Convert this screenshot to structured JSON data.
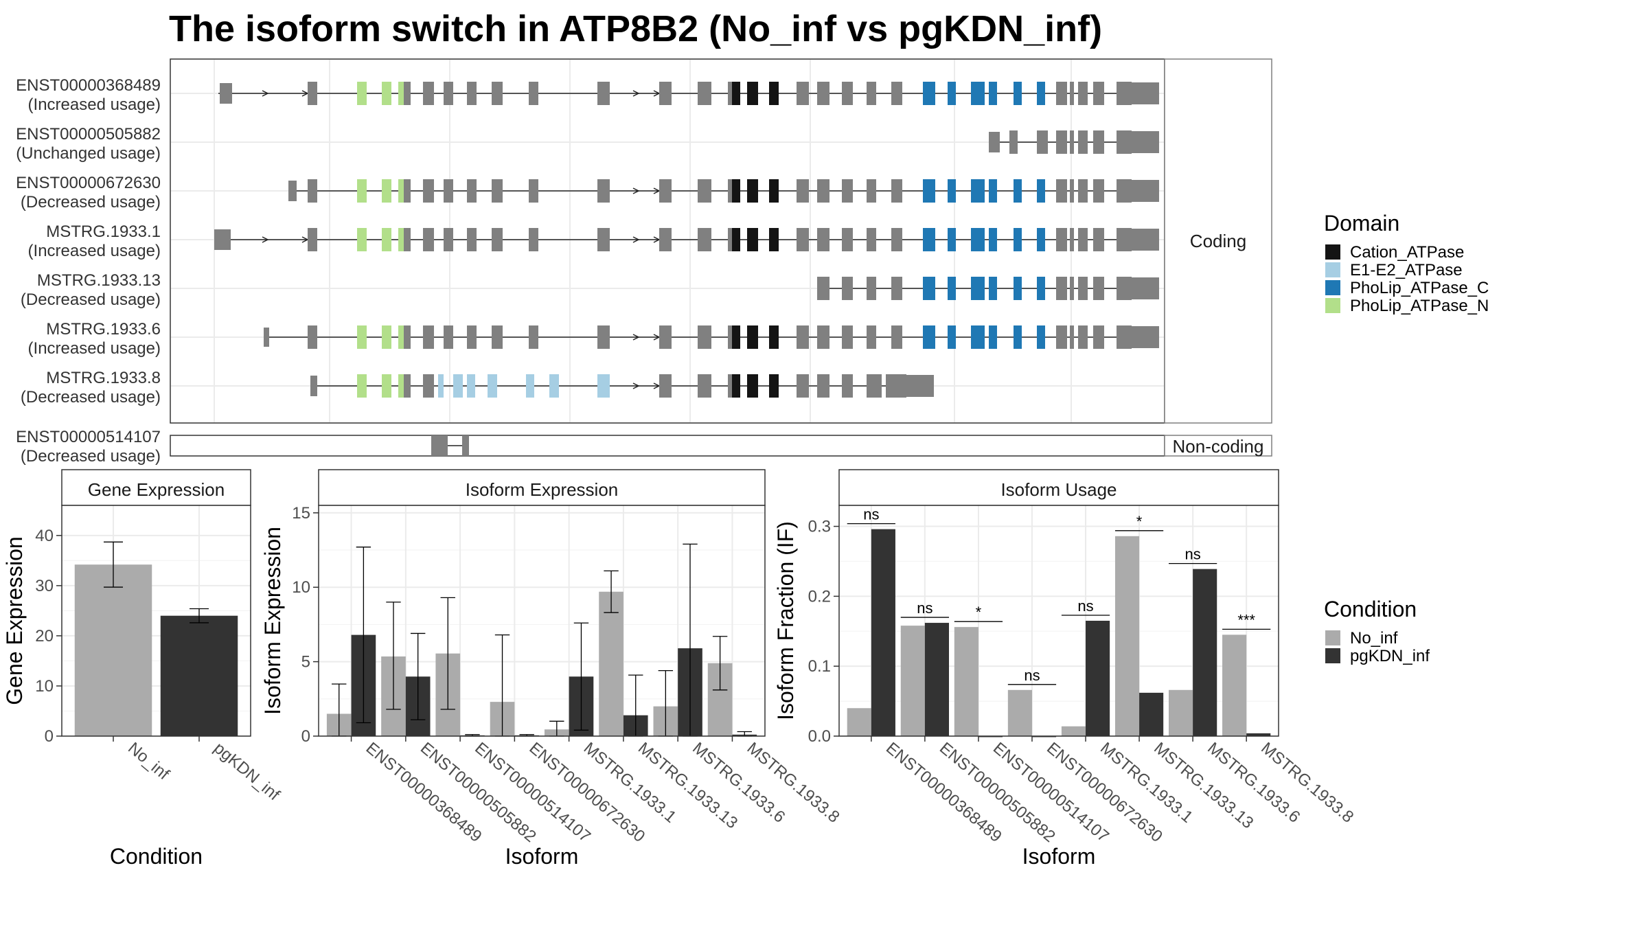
{
  "title": "The isoform switch in ATP8B2 (No_inf vs pgKDN_inf)",
  "colors": {
    "No_inf": "#ababab",
    "pgKDN_inf": "#333333",
    "Cation_ATPase": "#141414",
    "E1-E2_ATPase": "#a6cee3",
    "PhoLip_ATPase_C": "#1f78b4",
    "PhoLip_ATPase_N": "#b2df8a",
    "exon": "#808080"
  },
  "legend_domain": {
    "title": "Domain",
    "items": [
      {
        "label": "Cation_ATPase",
        "color": "#141414"
      },
      {
        "label": "E1-E2_ATPase",
        "color": "#a6cee3"
      },
      {
        "label": "PhoLip_ATPase_C",
        "color": "#1f78b4"
      },
      {
        "label": "PhoLip_ATPase_N",
        "color": "#b2df8a"
      }
    ]
  },
  "legend_condition": {
    "title": "Condition",
    "items": [
      {
        "label": "No_inf",
        "color": "#ababab"
      },
      {
        "label": "pgKDN_inf",
        "color": "#333333"
      }
    ]
  },
  "transcripts": {
    "coding_strip": "Coding",
    "noncoding_strip": "Non-coding",
    "coding": [
      {
        "id": "ENST00000368489",
        "usage": "(Increased usage)"
      },
      {
        "id": "ENST00000505882",
        "usage": "(Unchanged usage)"
      },
      {
        "id": "ENST00000672630",
        "usage": "(Decreased usage)"
      },
      {
        "id": "MSTRG.1933.1",
        "usage": "(Increased usage)"
      },
      {
        "id": "MSTRG.1933.13",
        "usage": "(Decreased usage)"
      },
      {
        "id": "MSTRG.1933.6",
        "usage": "(Increased usage)"
      },
      {
        "id": "MSTRG.1933.8",
        "usage": "(Decreased usage)"
      }
    ],
    "noncoding": [
      {
        "id": "ENST00000514107",
        "usage": "(Decreased usage)"
      }
    ]
  },
  "chart_data": [
    {
      "type": "bar",
      "title": "Gene Expression",
      "xlabel": "Condition",
      "ylabel": "Gene Expression",
      "categories": [
        "No_inf",
        "pgKDN_inf"
      ],
      "values": [
        34.2,
        24.0
      ],
      "error_low": [
        29.7,
        22.6
      ],
      "error_high": [
        38.7,
        25.4
      ],
      "yticks": [
        0,
        10,
        20,
        30,
        40
      ],
      "ylim": [
        0,
        46
      ]
    },
    {
      "type": "bar",
      "title": "Isoform Expression",
      "xlabel": "Isoform",
      "ylabel": "Isoform Expression",
      "categories": [
        "ENST00000368489",
        "ENST00000505882",
        "ENST00000514107",
        "ENST00000672630",
        "MSTRG.1933.1",
        "MSTRG.1933.13",
        "MSTRG.1933.6",
        "MSTRG.1933.8"
      ],
      "series": [
        {
          "name": "No_inf",
          "values": [
            1.5,
            5.35,
            5.55,
            2.3,
            0.45,
            9.7,
            2.0,
            4.9
          ],
          "error_low": [
            0.0,
            1.8,
            1.8,
            0.0,
            0.0,
            8.3,
            0.0,
            3.1
          ],
          "error_high": [
            3.5,
            9.0,
            9.3,
            6.8,
            1.0,
            11.1,
            4.4,
            6.7
          ]
        },
        {
          "name": "pgKDN_inf",
          "values": [
            6.8,
            4.0,
            0.05,
            0.05,
            4.0,
            1.4,
            5.9,
            0.1
          ],
          "error_low": [
            0.9,
            1.1,
            0.0,
            0.0,
            0.4,
            0.0,
            0.0,
            0.0
          ],
          "error_high": [
            12.7,
            6.9,
            0.1,
            0.1,
            7.6,
            4.1,
            12.9,
            0.3
          ]
        }
      ],
      "yticks": [
        0,
        5,
        10,
        15
      ],
      "ylim": [
        0,
        15.5
      ]
    },
    {
      "type": "bar",
      "title": "Isoform Usage",
      "xlabel": "Isoform",
      "ylabel": "Isoform Fraction (IF)",
      "categories": [
        "ENST00000368489",
        "ENST00000505882",
        "ENST00000514107",
        "ENST00000672630",
        "MSTRG.1933.1",
        "MSTRG.1933.13",
        "MSTRG.1933.6",
        "MSTRG.1933.8"
      ],
      "series": [
        {
          "name": "No_inf",
          "values": [
            0.04,
            0.158,
            0.156,
            0.066,
            0.014,
            0.286,
            0.066,
            0.145
          ]
        },
        {
          "name": "pgKDN_inf",
          "values": [
            0.296,
            0.162,
            0.0,
            0.0,
            0.165,
            0.062,
            0.239,
            0.004
          ]
        }
      ],
      "significance": [
        "ns",
        "ns",
        "*",
        "ns",
        "ns",
        "*",
        "ns",
        "***"
      ],
      "yticks": [
        "0.0",
        "0.1",
        "0.2",
        "0.3"
      ],
      "ylim": [
        0,
        0.33
      ]
    }
  ]
}
